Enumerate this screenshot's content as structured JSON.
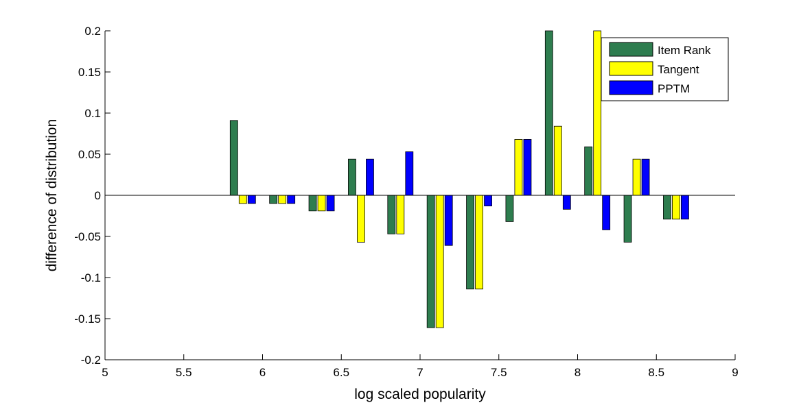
{
  "chart_data": {
    "type": "bar",
    "xlabel": "log scaled popularity",
    "ylabel": "difference of distribution",
    "xlim": [
      5,
      9
    ],
    "ylim": [
      -0.2,
      0.2
    ],
    "xticks": [
      "5",
      "5.5",
      "6",
      "6.5",
      "7",
      "7.5",
      "8",
      "8.5",
      "9"
    ],
    "yticks": [
      "-0.2",
      "-0.15",
      "-0.1",
      "-0.05",
      "0",
      "0.05",
      "0.1",
      "0.15",
      "0.2"
    ],
    "x": [
      5.875,
      6.125,
      6.375,
      6.625,
      6.875,
      7.125,
      7.375,
      7.625,
      7.875,
      8.125,
      8.375,
      8.625
    ],
    "series": [
      {
        "name": "Item Rank",
        "color": "#2e7d4f",
        "values": [
          0.091,
          -0.01,
          -0.019,
          0.044,
          -0.047,
          -0.161,
          -0.114,
          -0.032,
          0.2,
          0.059,
          -0.057,
          -0.029
        ]
      },
      {
        "name": "Tangent",
        "color": "#ffff00",
        "values": [
          -0.01,
          -0.01,
          -0.019,
          -0.057,
          -0.047,
          -0.161,
          -0.114,
          0.068,
          0.084,
          0.2,
          0.044,
          -0.029
        ]
      },
      {
        "name": "PPTM",
        "color": "#0000ff",
        "values": [
          -0.01,
          -0.01,
          -0.019,
          0.044,
          0.053,
          -0.061,
          -0.013,
          0.068,
          -0.017,
          -0.042,
          0.044,
          -0.029
        ]
      }
    ],
    "legend_position": "top-right",
    "grid": false
  }
}
